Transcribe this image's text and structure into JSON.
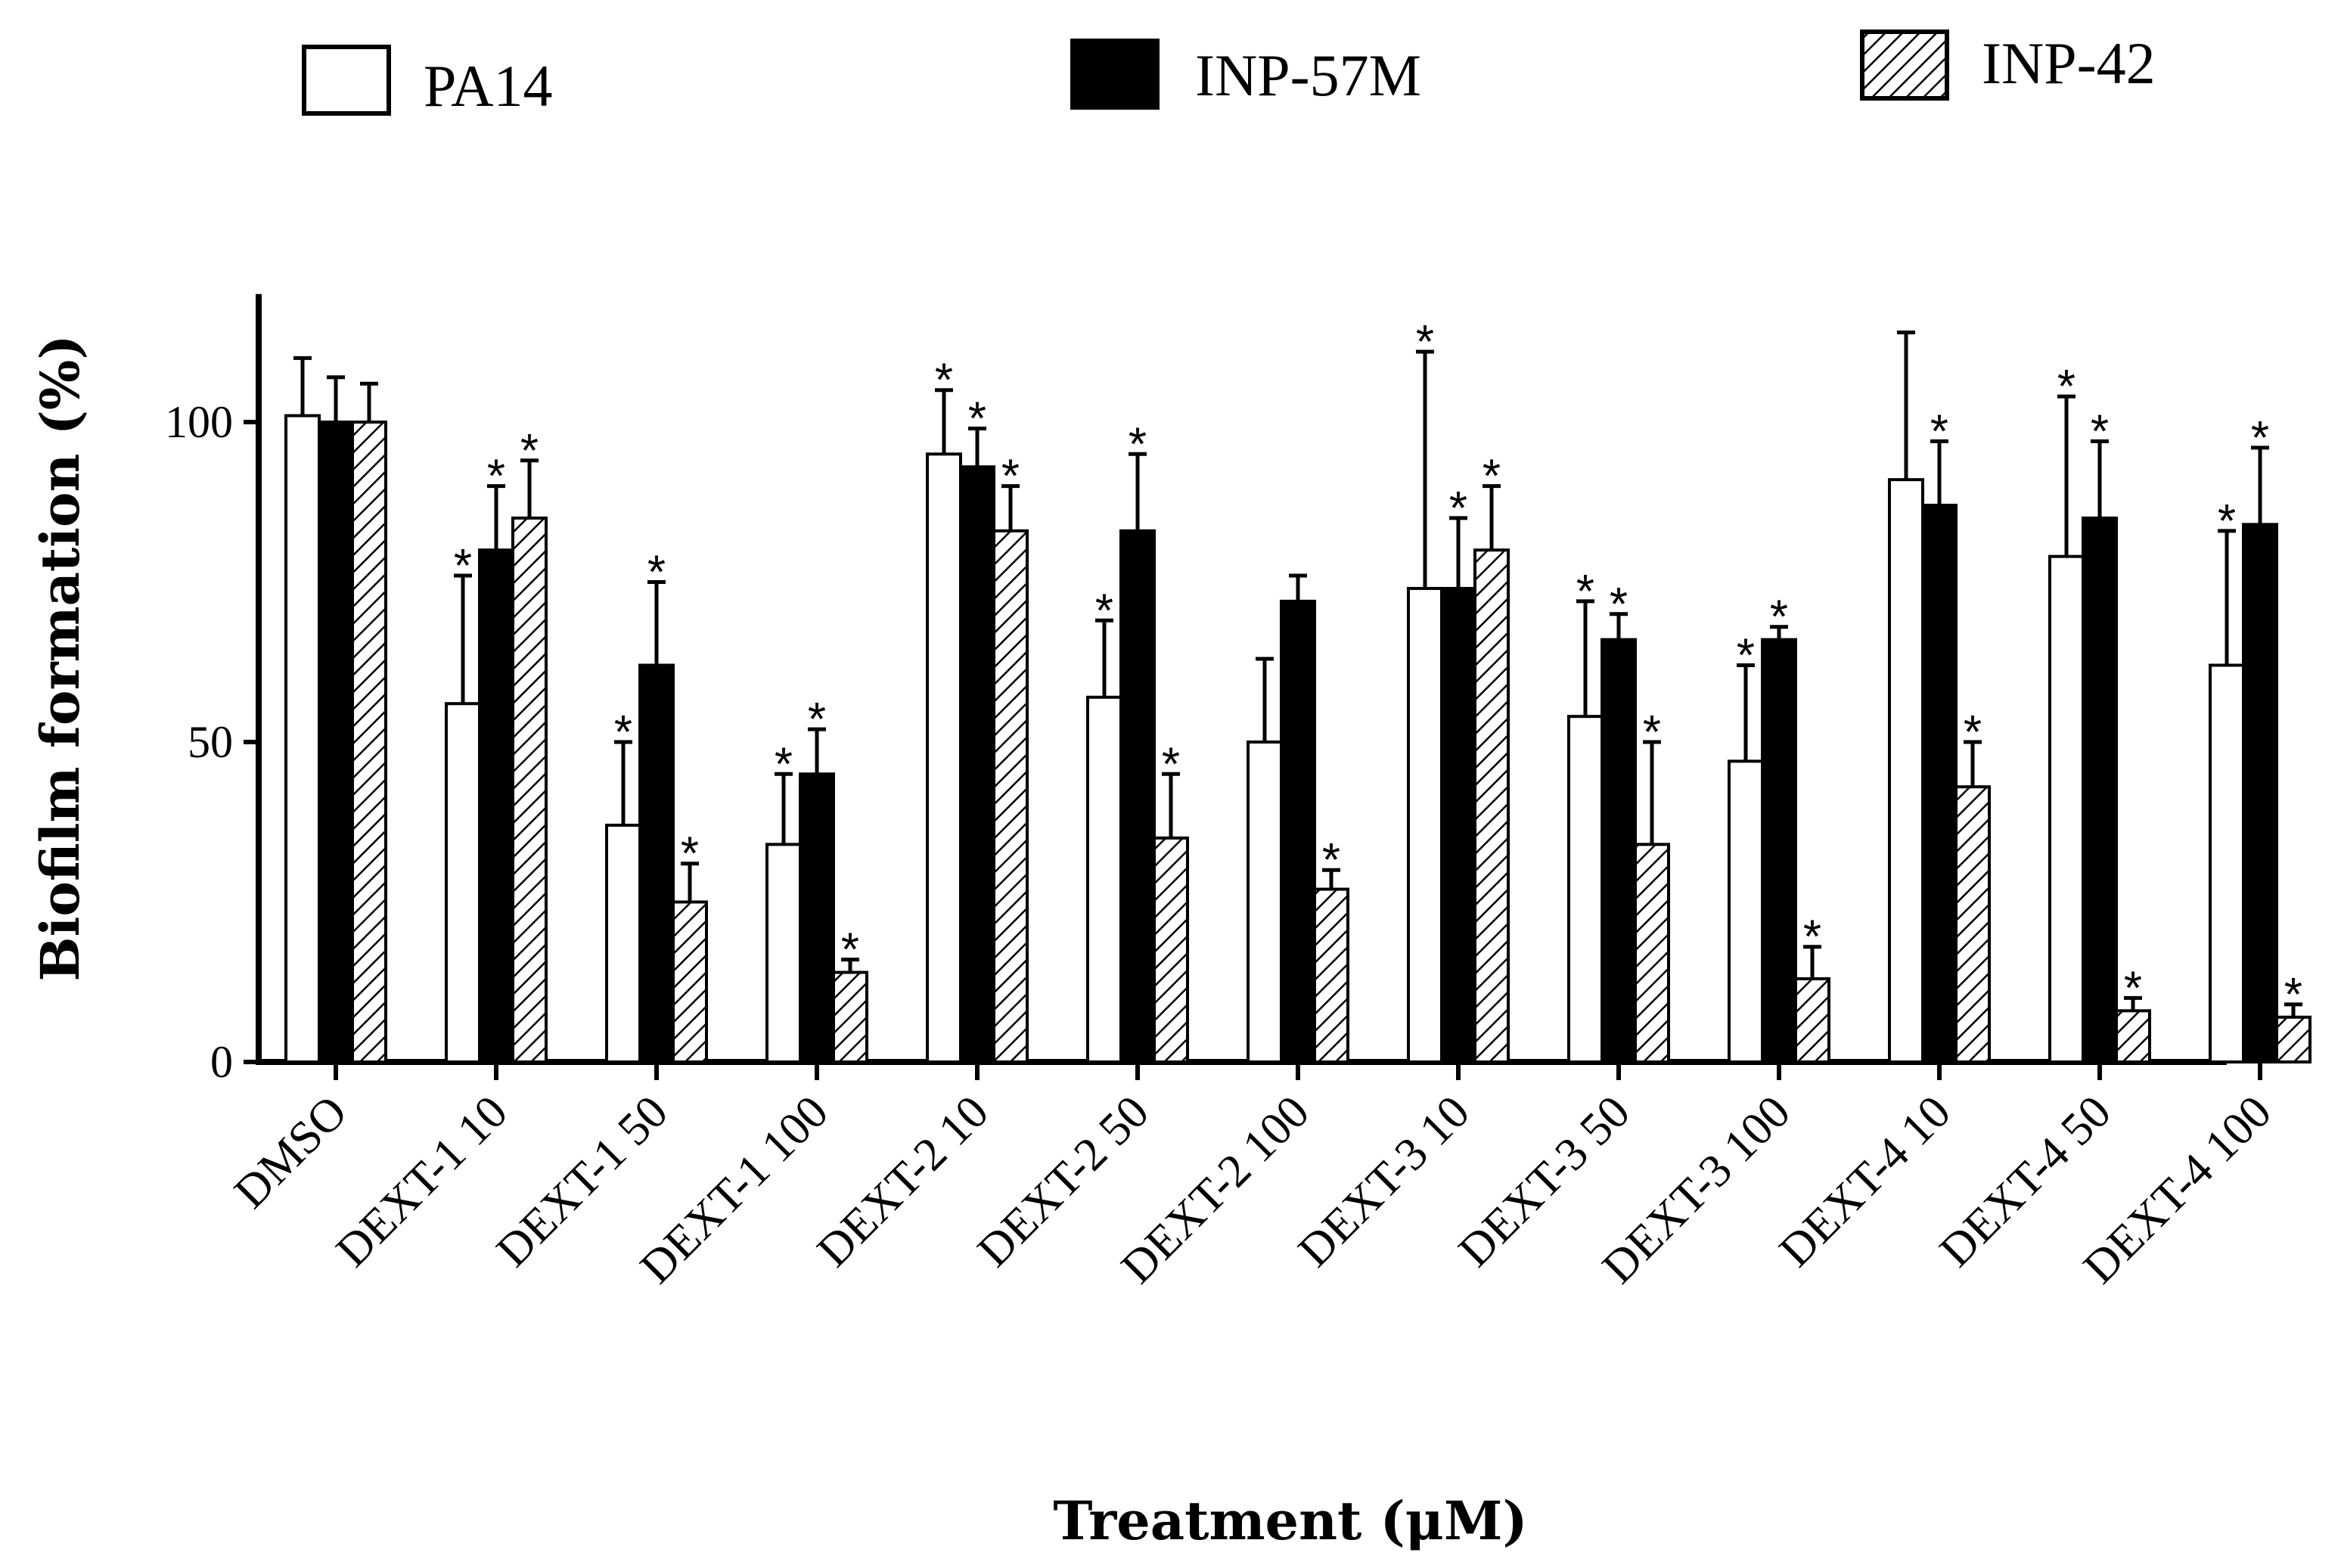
{
  "chart_data": {
    "type": "bar",
    "xlabel": "Treatment (μM)",
    "ylabel": "Biofilm formation (%)",
    "ylim": [
      0,
      120
    ],
    "yticks": [
      0,
      50,
      100
    ],
    "categories": [
      "DMSO",
      "DEXT-1 10",
      "DEXT-1 50",
      "DEXT-1 100",
      "DEXT-2 10",
      "DEXT-2 50",
      "DEXT-2 100",
      "DEXT-3 10",
      "DEXT-3 50",
      "DEXT-3 100",
      "DEXT-4 10",
      "DEXT-4 50",
      "DEXT-4 100"
    ],
    "series": [
      {
        "name": "PA14",
        "fill": "white",
        "values": [
          101,
          56,
          37,
          34,
          95,
          57,
          50,
          74,
          54,
          47,
          91,
          79,
          62
        ],
        "errors": [
          9,
          20,
          13,
          11,
          10,
          12,
          13,
          37,
          18,
          15,
          23,
          25,
          21
        ],
        "significant": [
          false,
          true,
          true,
          true,
          true,
          true,
          false,
          true,
          true,
          true,
          false,
          true,
          true
        ]
      },
      {
        "name": "INP-57M",
        "fill": "black",
        "values": [
          100,
          80,
          62,
          45,
          93,
          83,
          72,
          74,
          66,
          66,
          87,
          85,
          84
        ],
        "errors": [
          7,
          10,
          13,
          7,
          6,
          12,
          4,
          11,
          4,
          2,
          10,
          12,
          12
        ],
        "significant": [
          false,
          true,
          true,
          true,
          true,
          true,
          false,
          true,
          true,
          true,
          true,
          true,
          true
        ]
      },
      {
        "name": "INP-42",
        "fill": "hatched",
        "values": [
          100,
          85,
          25,
          14,
          83,
          35,
          27,
          80,
          34,
          13,
          43,
          8,
          7
        ],
        "errors": [
          6,
          9,
          6,
          2,
          7,
          10,
          3,
          10,
          16,
          5,
          7,
          2,
          2
        ],
        "significant": [
          false,
          true,
          true,
          true,
          true,
          true,
          true,
          true,
          true,
          true,
          true,
          true,
          true
        ]
      }
    ],
    "significance_marker": "*",
    "legend_position": "top"
  }
}
